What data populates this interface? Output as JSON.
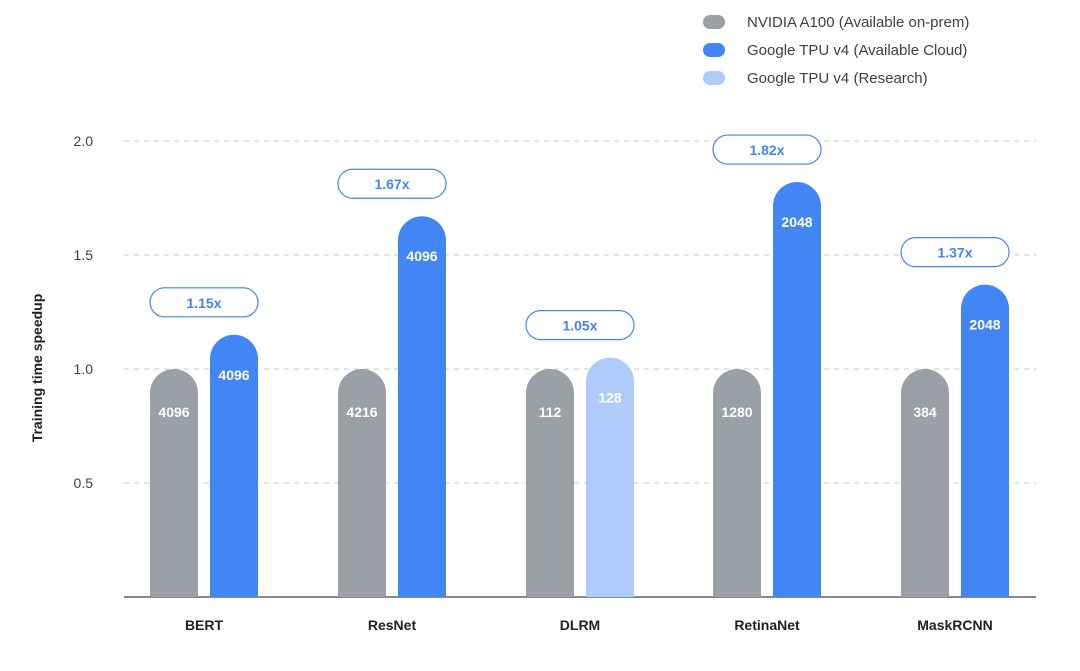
{
  "chart_data": {
    "type": "bar",
    "ylabel": "Training time speedup",
    "xlabel": "",
    "ylim": [
      0,
      2.0
    ],
    "yticks": [
      0.5,
      1.0,
      1.5,
      2.0
    ],
    "ytick_labels": [
      "0.5",
      "1.0",
      "1.5",
      "2.0"
    ],
    "grid": true,
    "legend_position": "top-right",
    "categories": [
      "BERT",
      "ResNet",
      "DLRM",
      "RetinaNet",
      "MaskRCNN"
    ],
    "series": [
      {
        "name": "NVIDIA A100 (Available on-prem)",
        "color": "#9aa0a6",
        "values": [
          1.0,
          1.0,
          1.0,
          1.0,
          1.0
        ],
        "bar_labels": [
          "4096",
          "4216",
          "112",
          "1280",
          "384"
        ]
      },
      {
        "name": "Google TPU v4 (Available Cloud)",
        "color": "#4285f4",
        "values": [
          1.15,
          1.67,
          null,
          1.82,
          1.37
        ],
        "bar_labels": [
          "4096",
          "4096",
          null,
          "2048",
          "2048"
        ]
      },
      {
        "name": "Google TPU v4 (Research)",
        "color": "#aecbfa",
        "values": [
          null,
          null,
          1.05,
          null,
          null
        ],
        "bar_labels": [
          null,
          null,
          "128",
          null,
          null
        ]
      }
    ],
    "speedup_labels": [
      "1.15x",
      "1.67x",
      "1.05x",
      "1.82x",
      "1.37x"
    ]
  }
}
